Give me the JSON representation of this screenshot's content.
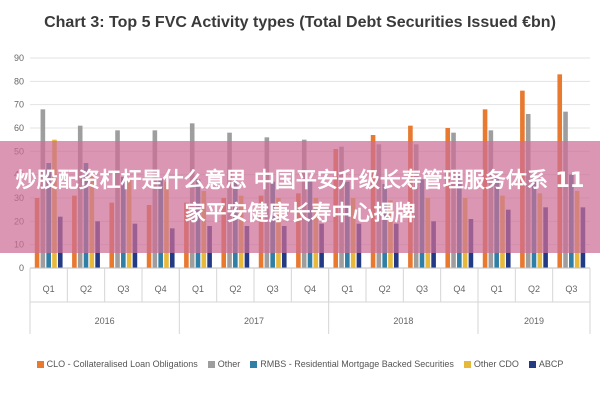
{
  "chart_data": {
    "type": "bar",
    "title": "Chart 3: Top 5 FVC Activity types (Total Debt Securities Issued €bn)",
    "ylim": [
      0,
      90
    ],
    "yticks": [
      0,
      10,
      20,
      30,
      40,
      50,
      60,
      70,
      80,
      90
    ],
    "grid": true,
    "legend_position": "bottom",
    "categories": [
      "Q1",
      "Q2",
      "Q3",
      "Q4",
      "Q1",
      "Q2",
      "Q3",
      "Q4",
      "Q1",
      "Q2",
      "Q3",
      "Q4",
      "Q1",
      "Q2",
      "Q3"
    ],
    "year_groups": [
      {
        "label": "2016",
        "count": 4
      },
      {
        "label": "2017",
        "count": 4
      },
      {
        "label": "2018",
        "count": 4
      },
      {
        "label": "2019",
        "count": 3
      }
    ],
    "series": [
      {
        "name": "CLO - Collateralised Loan Obligations",
        "color": "#e8792f",
        "values": [
          30,
          31,
          28,
          27,
          28,
          30,
          31,
          32,
          51,
          57,
          61,
          60,
          68,
          76,
          83
        ]
      },
      {
        "name": "Other",
        "color": "#9e9e9e",
        "values": [
          68,
          61,
          59,
          59,
          62,
          58,
          56,
          55,
          52,
          53,
          53,
          58,
          59,
          66,
          67
        ]
      },
      {
        "name": "RMBS - Residential Mortgage Backed Securities",
        "color": "#2f7fa6",
        "values": [
          45,
          45,
          39,
          38,
          38,
          38,
          37,
          38,
          37,
          36,
          38,
          40,
          40,
          40,
          40
        ]
      },
      {
        "name": "Other CDO",
        "color": "#e7b93a",
        "values": [
          55,
          40,
          38,
          37,
          33,
          31,
          30,
          30,
          30,
          29,
          30,
          30,
          31,
          32,
          33
        ]
      },
      {
        "name": "ABCP",
        "color": "#233a84",
        "values": [
          22,
          20,
          19,
          17,
          18,
          18,
          18,
          19,
          19,
          19,
          20,
          21,
          25,
          26,
          26
        ]
      }
    ]
  },
  "overlay": {
    "text": "炒股配资杠杆是什么意思 中国平安升级长寿管理服务体系 11家平安健康长寿中心揭牌"
  }
}
